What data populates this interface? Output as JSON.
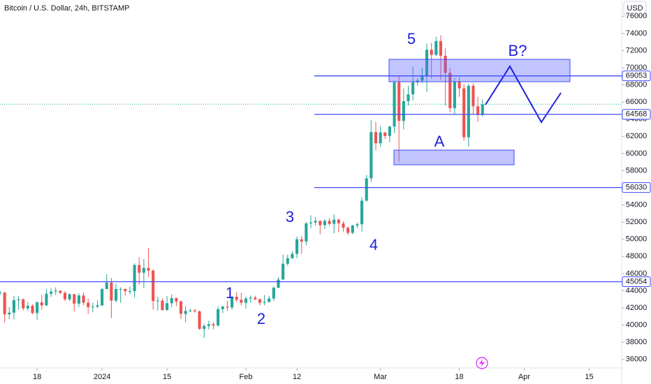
{
  "chart_data": {
    "type": "candlestick",
    "title": "Bitcoin / U.S. Dollar, 24h, BITSTAMP",
    "currency": "USD",
    "up_color": "#26a69a",
    "down_color": "#ef5350",
    "line_color": "#3d4bff",
    "xlim": [
      0,
      134
    ],
    "ylim": [
      35000,
      77900
    ],
    "yticks": [
      36000,
      38000,
      40000,
      42000,
      44000,
      46000,
      48000,
      50000,
      52000,
      54000,
      56000,
      58000,
      60000,
      62000,
      64000,
      66000,
      68000,
      70000,
      72000,
      74000,
      76000
    ],
    "xticks": [
      {
        "value": 8,
        "label": "18"
      },
      {
        "value": 22,
        "label": "2024"
      },
      {
        "value": 36,
        "label": "15"
      },
      {
        "value": 53,
        "label": "Feb"
      },
      {
        "value": 64,
        "label": "12"
      },
      {
        "value": 82,
        "label": "Mar"
      },
      {
        "value": 99,
        "label": "18"
      },
      {
        "value": 113,
        "label": "Apr"
      },
      {
        "value": 127,
        "label": "15"
      }
    ],
    "price_lines": [
      69053,
      64568,
      56030,
      45054
    ],
    "annotations": [
      "5",
      "B?",
      "A",
      "3",
      "4",
      "1",
      "2"
    ],
    "x": [
      0,
      1,
      2,
      3,
      4,
      5,
      6,
      7,
      8,
      9,
      10,
      11,
      12,
      13,
      14,
      15,
      16,
      17,
      18,
      19,
      20,
      21,
      22,
      23,
      24,
      25,
      26,
      27,
      28,
      29,
      30,
      31,
      32,
      33,
      34,
      35,
      36,
      37,
      38,
      39,
      40,
      41,
      42,
      43,
      44,
      45,
      46,
      47,
      48,
      49,
      50,
      51,
      52,
      53,
      54,
      55,
      56,
      57,
      58,
      59,
      60,
      61,
      62,
      63,
      64,
      65,
      66,
      67,
      68,
      69,
      70,
      71,
      72,
      73,
      74,
      75,
      76,
      77,
      78,
      79,
      80,
      81,
      82,
      83,
      84,
      85,
      86,
      87,
      88,
      89,
      90,
      91,
      92,
      93,
      94,
      95,
      96,
      97,
      98,
      99,
      100,
      101,
      102,
      103,
      104
    ],
    "open": [
      43700,
      43800,
      41250,
      41450,
      42900,
      43000,
      41950,
      42250,
      41400,
      42650,
      42300,
      43650,
      43900,
      44000,
      43750,
      43000,
      43600,
      42500,
      43450,
      42600,
      42100,
      42150,
      42300,
      44200,
      44950,
      42850,
      44200,
      44200,
      43950,
      43950,
      47000,
      46100,
      46650,
      46350,
      42800,
      42850,
      41750,
      42550,
      43150,
      42750,
      41300,
      41650,
      41700,
      41600,
      39550,
      39900,
      40100,
      39950,
      41850,
      42150,
      42050,
      43300,
      42950,
      42600,
      43100,
      43200,
      43000,
      42600,
      42700,
      43100,
      44350,
      45300,
      47150,
      47800,
      48300,
      50000,
      49750,
      51850,
      51950,
      52150,
      51650,
      52150,
      51800,
      52300,
      51850,
      51350,
      50750,
      51600,
      51750,
      54500,
      57100,
      62500,
      61200,
      62450,
      62050,
      63150,
      68300,
      63800,
      66100,
      66900,
      68300,
      68500,
      69000,
      72100,
      71500,
      73100,
      71400,
      69400,
      65300,
      68400,
      67600,
      61900,
      67900,
      65500,
      64500
    ],
    "high": [
      44050,
      43850,
      42100,
      43400,
      43400,
      43100,
      42700,
      42400,
      42750,
      43500,
      44250,
      44300,
      44400,
      44050,
      43950,
      43700,
      43650,
      43700,
      43800,
      43100,
      42600,
      42900,
      44300,
      45900,
      45500,
      44800,
      44400,
      44300,
      44500,
      47200,
      47900,
      47700,
      49000,
      46500,
      43300,
      43100,
      43400,
      43600,
      43200,
      42900,
      42200,
      41900,
      41900,
      41700,
      40150,
      40500,
      40300,
      42200,
      42250,
      42850,
      43350,
      43850,
      43750,
      43300,
      43450,
      43400,
      43100,
      43500,
      43400,
      44500,
      45600,
      48200,
      48200,
      48600,
      50300,
      50400,
      52000,
      52800,
      52600,
      52200,
      52350,
      52500,
      52900,
      52400,
      52100,
      51500,
      51700,
      51950,
      54900,
      57500,
      63900,
      63700,
      63200,
      62500,
      63200,
      68500,
      69000,
      67600,
      67900,
      70100,
      68800,
      70000,
      72800,
      72900,
      73600,
      73800,
      72300,
      70000,
      68800,
      68900,
      68100,
      68100,
      68200,
      66600,
      66300
    ],
    "low": [
      43500,
      40300,
      40700,
      40650,
      41800,
      41700,
      41650,
      41250,
      40600,
      41800,
      42200,
      43300,
      43500,
      43600,
      42800,
      42800,
      41600,
      42100,
      42300,
      41300,
      41500,
      41950,
      42200,
      44200,
      40800,
      42650,
      42600,
      43450,
      43600,
      43200,
      44700,
      44300,
      45600,
      41800,
      41700,
      41700,
      41700,
      42100,
      42200,
      40700,
      40300,
      41500,
      41450,
      39450,
      38500,
      39500,
      39500,
      39800,
      41400,
      41650,
      41800,
      42700,
      42300,
      41900,
      42600,
      42900,
      42300,
      42300,
      42600,
      42800,
      44300,
      45300,
      46900,
      47700,
      47800,
      48300,
      49300,
      51300,
      51600,
      50600,
      51200,
      51600,
      50700,
      50800,
      50900,
      50500,
      50600,
      51300,
      50900,
      54400,
      56700,
      60400,
      60800,
      61700,
      61300,
      62400,
      59000,
      62800,
      65600,
      66200,
      67900,
      68200,
      67200,
      68700,
      71400,
      68600,
      65600,
      64800,
      64600,
      66600,
      61500,
      60800,
      64600,
      63700,
      64300
    ],
    "close": [
      43800,
      41250,
      41450,
      42900,
      43000,
      41950,
      42250,
      41400,
      42650,
      42300,
      43650,
      43900,
      44000,
      43750,
      43000,
      43600,
      42500,
      43450,
      42600,
      42100,
      42150,
      42300,
      44200,
      44950,
      42850,
      44200,
      44200,
      43950,
      43950,
      47000,
      46100,
      46650,
      46350,
      42800,
      42850,
      41750,
      42550,
      43150,
      42750,
      41300,
      41650,
      41700,
      41600,
      39550,
      39900,
      40100,
      39950,
      41850,
      42150,
      42050,
      43300,
      42950,
      42600,
      43100,
      43200,
      43000,
      42600,
      42700,
      43100,
      44350,
      45300,
      47150,
      47800,
      48300,
      50000,
      49750,
      51850,
      51950,
      52150,
      51650,
      52150,
      51800,
      52300,
      51850,
      51350,
      50750,
      51600,
      51750,
      54500,
      57100,
      62500,
      61200,
      62450,
      62050,
      63150,
      68300,
      63800,
      66100,
      66900,
      68300,
      68500,
      69000,
      72100,
      71500,
      73100,
      71400,
      69400,
      65300,
      68400,
      67600,
      61900,
      67900,
      65500,
      64500,
      65750
    ]
  }
}
